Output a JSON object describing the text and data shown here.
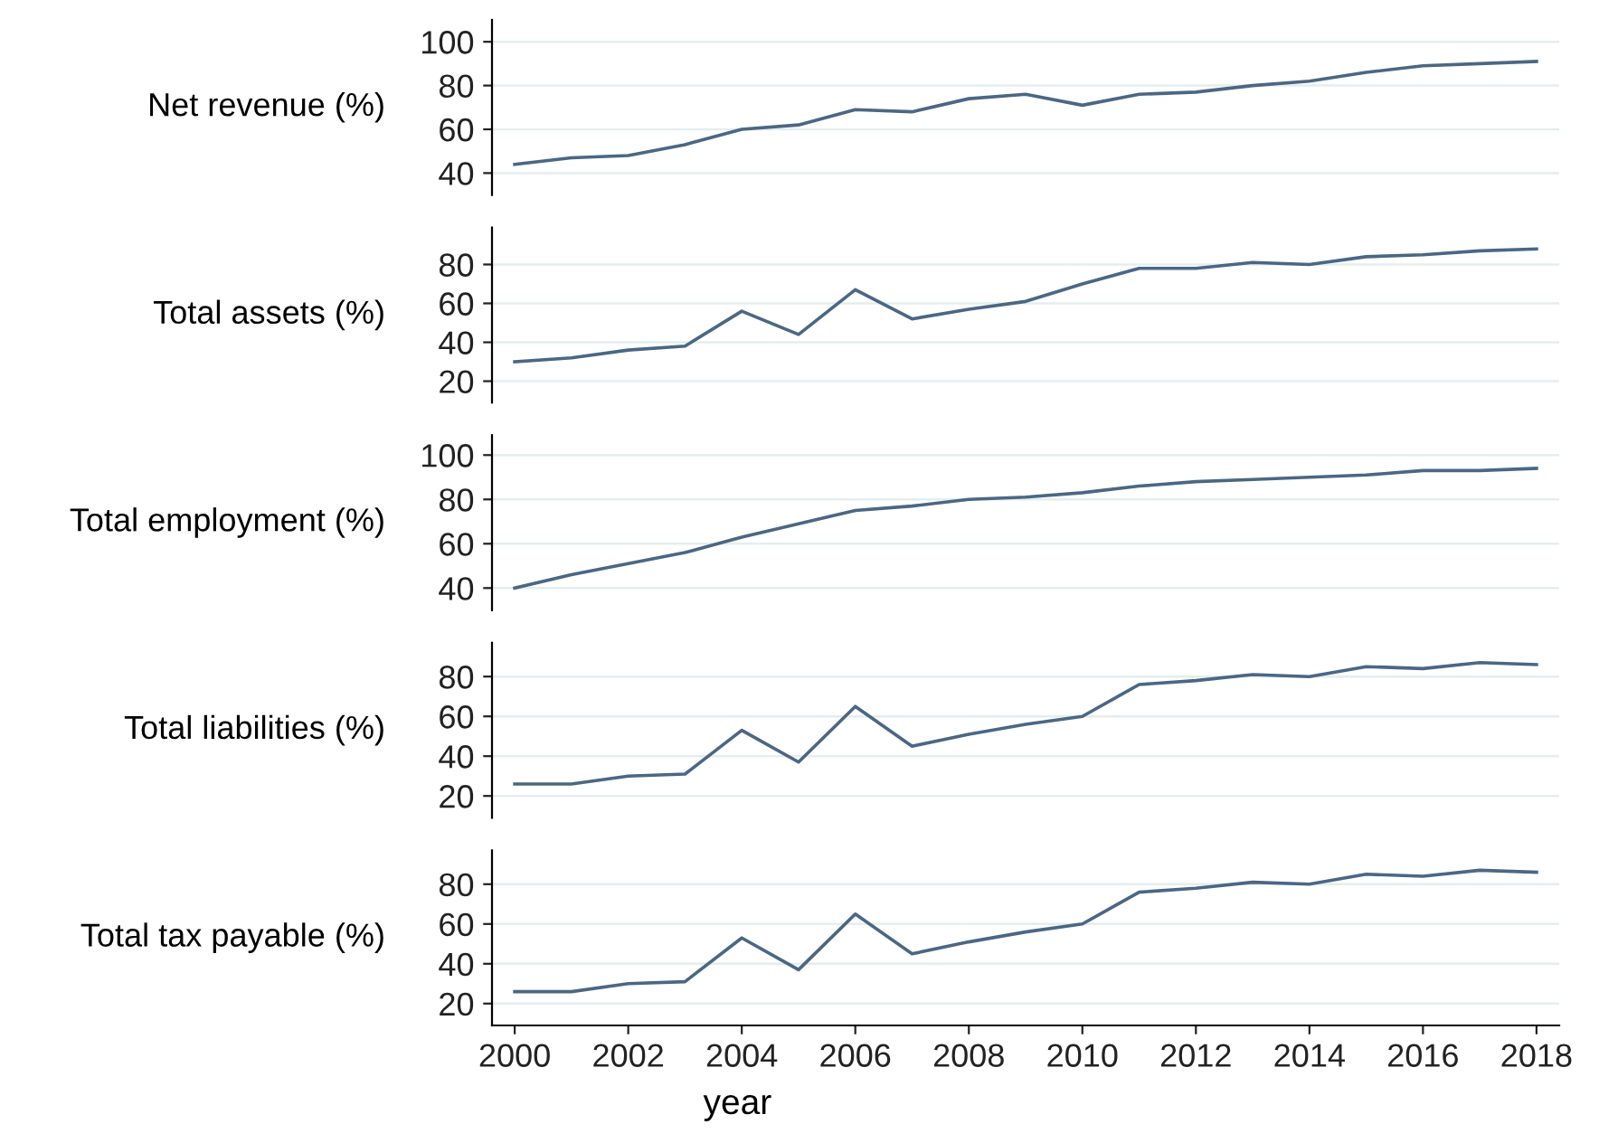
{
  "chart_data": [
    {
      "type": "line",
      "ylabel": "Net revenue (%)",
      "x": [
        2000,
        2001,
        2002,
        2003,
        2004,
        2005,
        2006,
        2007,
        2008,
        2009,
        2010,
        2011,
        2012,
        2013,
        2014,
        2015,
        2016,
        2017,
        2018
      ],
      "series": [
        {
          "color": "#4a6785",
          "values": [
            44,
            47,
            48,
            53,
            60,
            62,
            69,
            68,
            74,
            76,
            71,
            76,
            77,
            80,
            82,
            86,
            89,
            90,
            91
          ]
        }
      ],
      "xlim": [
        1999.6,
        2018.4
      ],
      "ylim": [
        30,
        110
      ],
      "yticks": [
        40,
        60,
        80,
        100
      ],
      "grid": "y",
      "tick_labels": "y"
    },
    {
      "type": "line",
      "ylabel": "Total assets (%)",
      "x": [
        2000,
        2001,
        2002,
        2003,
        2004,
        2005,
        2006,
        2007,
        2008,
        2009,
        2010,
        2011,
        2012,
        2013,
        2014,
        2015,
        2016,
        2017,
        2018
      ],
      "series": [
        {
          "color": "#4a6785",
          "values": [
            30,
            32,
            36,
            38,
            56,
            44,
            67,
            52,
            57,
            61,
            70,
            78,
            78,
            81,
            80,
            84,
            85,
            87,
            88
          ]
        }
      ],
      "xlim": [
        1999.6,
        2018.4
      ],
      "ylim": [
        9,
        99
      ],
      "yticks": [
        20,
        40,
        60,
        80
      ],
      "grid": "y",
      "tick_labels": "y"
    },
    {
      "type": "line",
      "ylabel": "Total employment (%)",
      "x": [
        2000,
        2001,
        2002,
        2003,
        2004,
        2005,
        2006,
        2007,
        2008,
        2009,
        2010,
        2011,
        2012,
        2013,
        2014,
        2015,
        2016,
        2017,
        2018
      ],
      "series": [
        {
          "color": "#4a6785",
          "values": [
            40,
            46,
            51,
            56,
            63,
            69,
            75,
            77,
            80,
            81,
            83,
            86,
            88,
            89,
            90,
            91,
            93,
            93,
            94
          ]
        }
      ],
      "xlim": [
        1999.6,
        2018.4
      ],
      "ylim": [
        30,
        109
      ],
      "yticks": [
        40,
        60,
        80,
        100
      ],
      "grid": "y",
      "tick_labels": "y"
    },
    {
      "type": "line",
      "ylabel": "Total liabilities (%)",
      "x": [
        2000,
        2001,
        2002,
        2003,
        2004,
        2005,
        2006,
        2007,
        2008,
        2009,
        2010,
        2011,
        2012,
        2013,
        2014,
        2015,
        2016,
        2017,
        2018
      ],
      "series": [
        {
          "color": "#4a6785",
          "values": [
            26,
            26,
            30,
            31,
            53,
            37,
            65,
            45,
            51,
            56,
            60,
            76,
            78,
            81,
            80,
            85,
            84,
            87,
            86
          ]
        }
      ],
      "xlim": [
        1999.6,
        2018.4
      ],
      "ylim": [
        9,
        97
      ],
      "yticks": [
        20,
        40,
        60,
        80
      ],
      "grid": "y",
      "tick_labels": "y"
    },
    {
      "type": "line",
      "ylabel": "Total tax payable (%)",
      "xlabel": "year",
      "x": [
        2000,
        2001,
        2002,
        2003,
        2004,
        2005,
        2006,
        2007,
        2008,
        2009,
        2010,
        2011,
        2012,
        2013,
        2014,
        2015,
        2016,
        2017,
        2018
      ],
      "series": [
        {
          "color": "#4a6785",
          "values": [
            26,
            26,
            30,
            31,
            53,
            37,
            65,
            45,
            51,
            56,
            60,
            76,
            78,
            81,
            80,
            85,
            84,
            87,
            86
          ]
        }
      ],
      "xlim": [
        1999.6,
        2018.4
      ],
      "xticks": [
        2000,
        2002,
        2004,
        2006,
        2008,
        2010,
        2012,
        2014,
        2016,
        2018
      ],
      "ylim": [
        9,
        97
      ],
      "yticks": [
        20,
        40,
        60,
        80
      ],
      "grid": "y"
    }
  ]
}
